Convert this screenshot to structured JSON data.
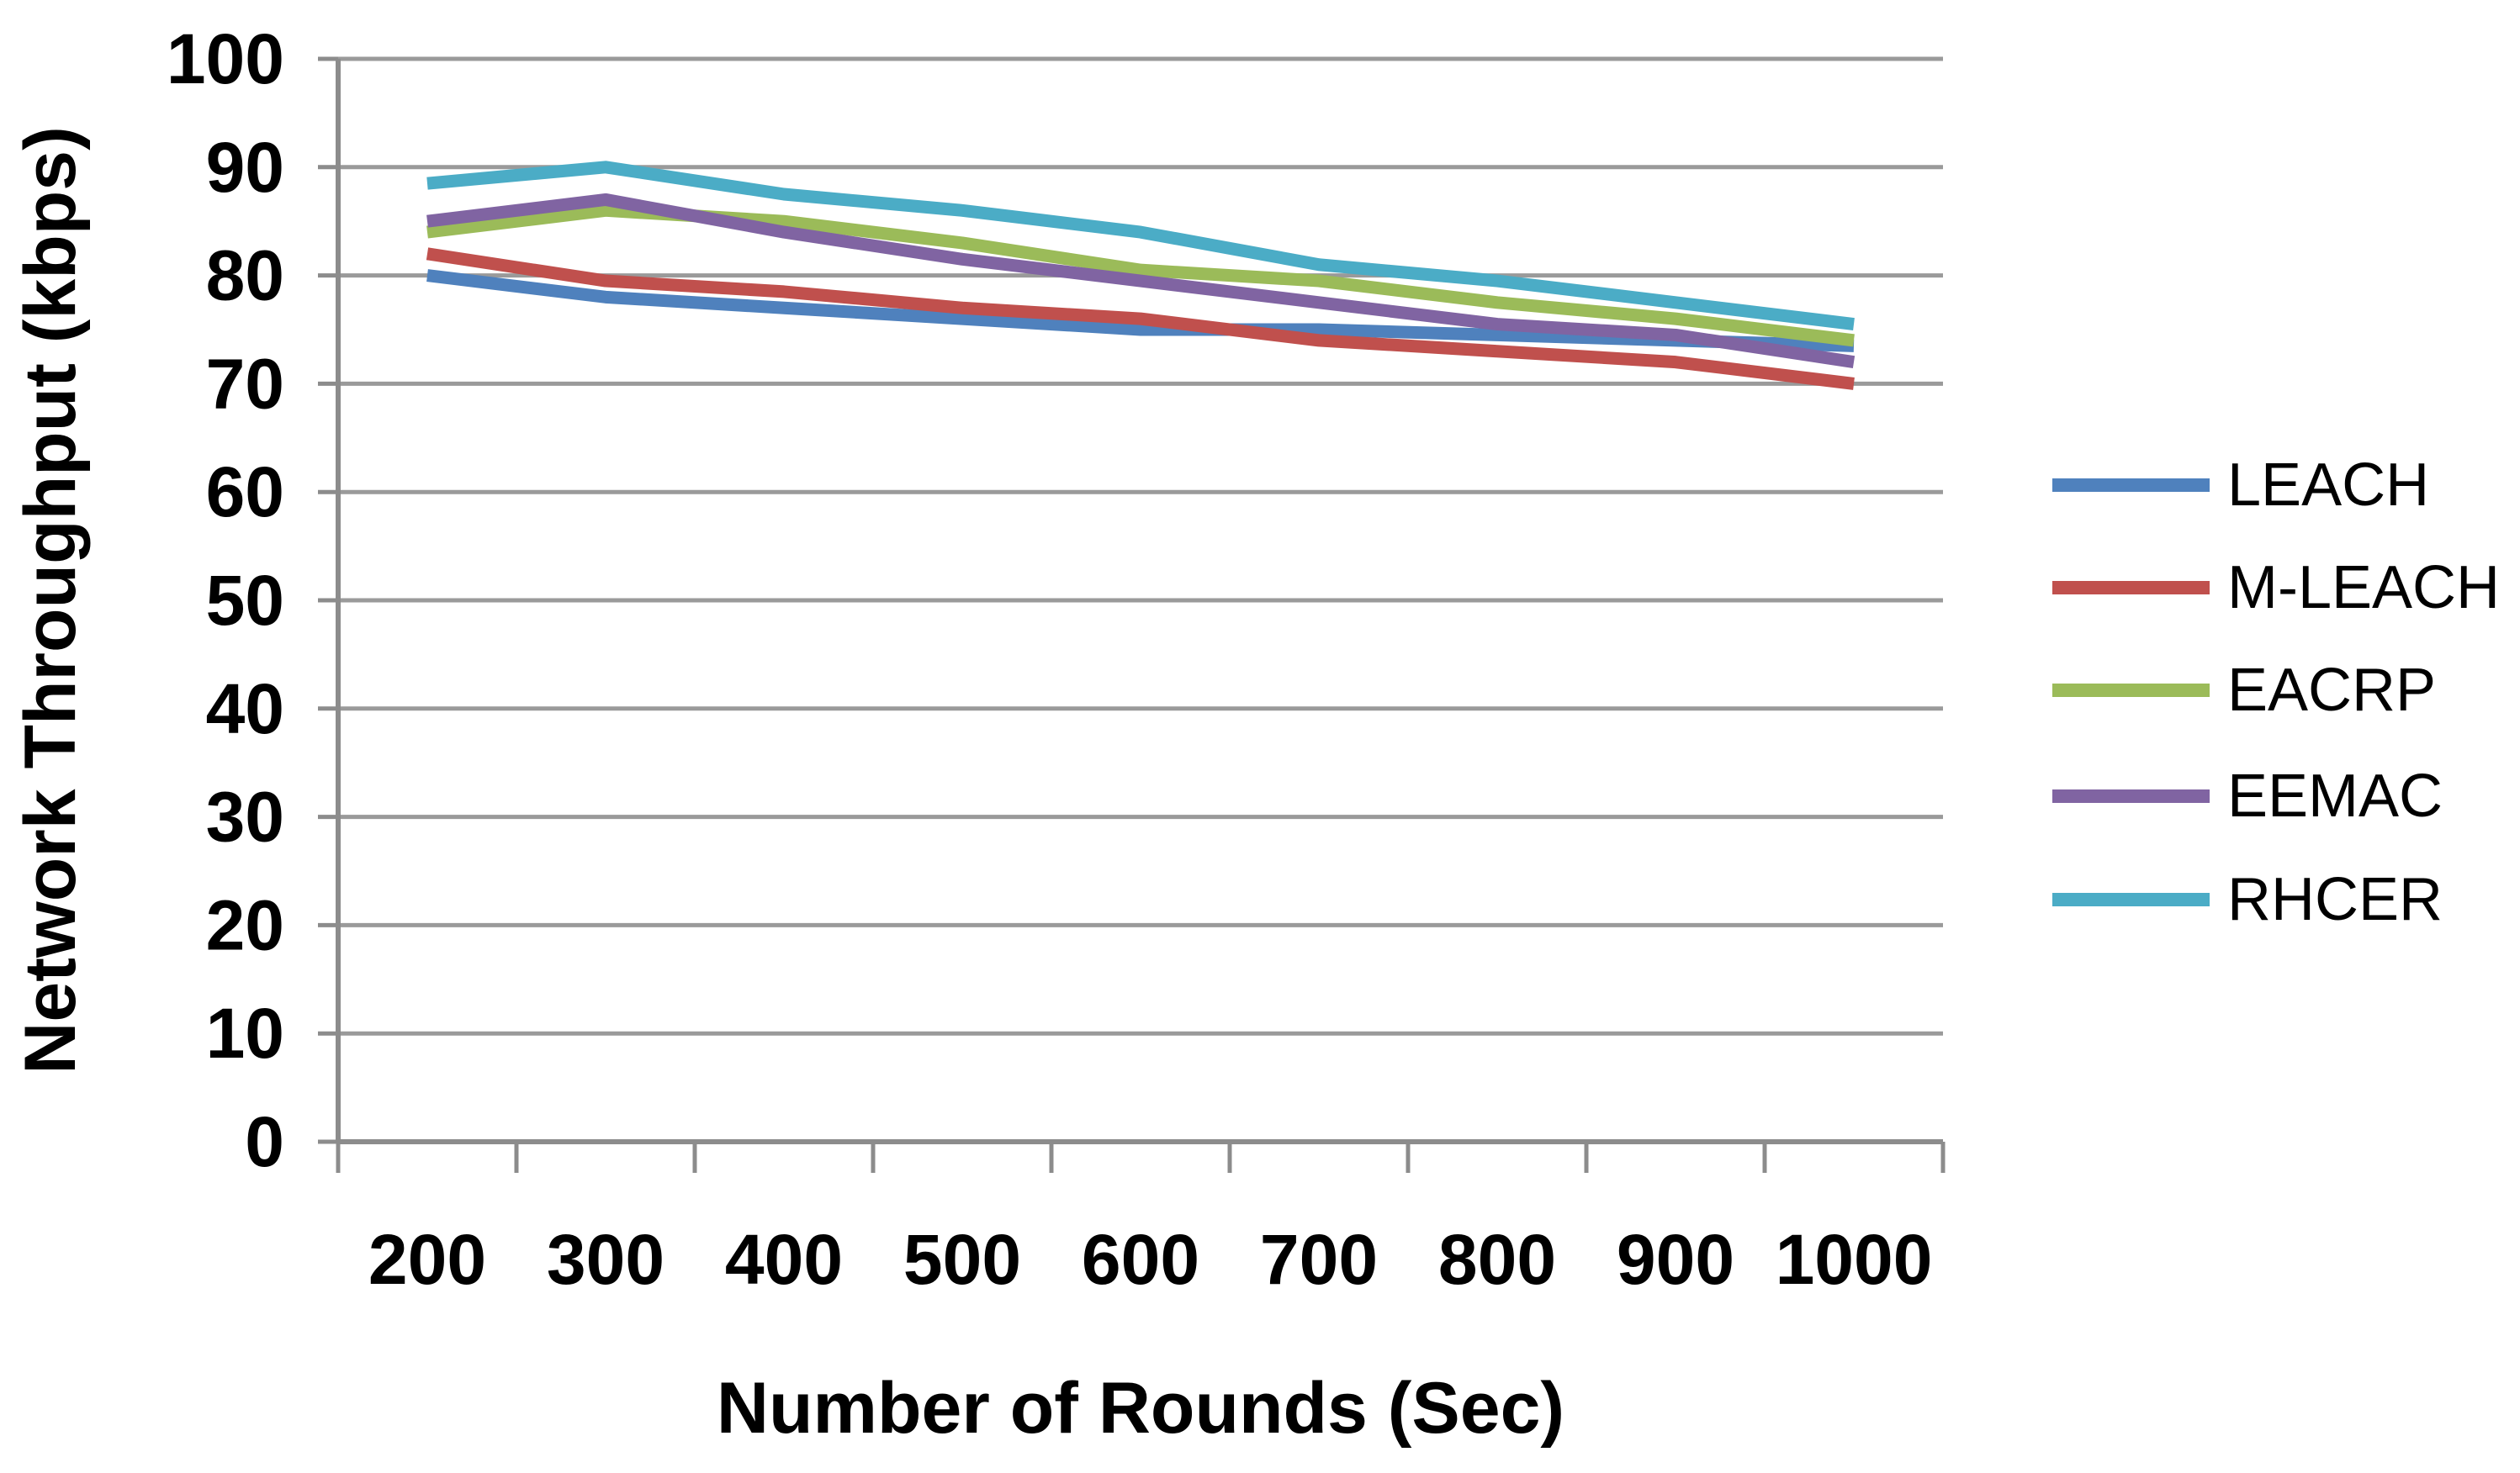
{
  "chart_data": {
    "type": "line",
    "title": "",
    "xlabel": "Number of Rounds (Sec)",
    "ylabel": "Network Throughput (kbps)",
    "x_categories": [
      "200",
      "300",
      "400",
      "500",
      "600",
      "700",
      "800",
      "900",
      "1000"
    ],
    "x_values": [
      200,
      300,
      400,
      500,
      600,
      700,
      800,
      900,
      1000
    ],
    "y_ticks": [
      0,
      10,
      20,
      30,
      40,
      50,
      60,
      70,
      80,
      90,
      100
    ],
    "ylim": [
      0,
      100
    ],
    "grid": "horizontal-only",
    "legend_position": "right",
    "legend_order": [
      "LEACH",
      "M-LEACH",
      "EACRP",
      "EEMAC",
      "RHCER"
    ],
    "series": [
      {
        "name": "LEACH",
        "color": "#4F81BD",
        "values": [
          80,
          78,
          77,
          76,
          75,
          75,
          74.5,
          74,
          73.5
        ]
      },
      {
        "name": "M-LEACH",
        "color": "#C0504D",
        "values": [
          82,
          79.5,
          78.5,
          77,
          76,
          74,
          73,
          72,
          70
        ]
      },
      {
        "name": "EACRP",
        "color": "#9BBB59",
        "values": [
          84,
          86,
          85,
          83,
          80.5,
          79.5,
          77.5,
          76,
          74
        ]
      },
      {
        "name": "EEMAC",
        "color": "#8064A2",
        "values": [
          85,
          87,
          84,
          81.5,
          79.5,
          77.5,
          75.5,
          74.5,
          72
        ]
      },
      {
        "name": "RHCER",
        "color": "#4BACC6",
        "values": [
          88.5,
          90,
          87.5,
          86,
          84,
          81,
          79.5,
          77.5,
          75.5
        ]
      }
    ],
    "colors": {
      "gridline": "#9A9A9A",
      "axis": "#8C8C8C",
      "text": "#000000",
      "background": "#FFFFFF"
    }
  }
}
